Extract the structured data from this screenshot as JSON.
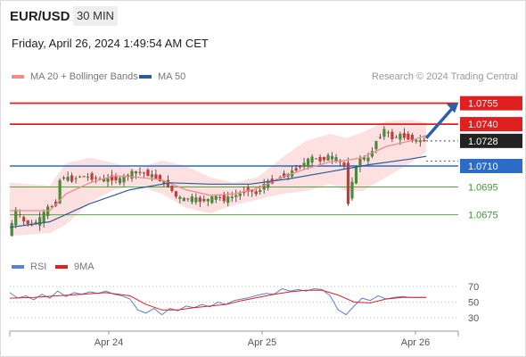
{
  "header": {
    "symbol": "EUR/USD",
    "timeframe": "30 MIN",
    "datetime": "Friday, April 26, 2024 1:49:54 AM CET"
  },
  "legend_main": [
    {
      "label": "MA 20 + Bollinger Bands",
      "color": "#f08c8c"
    },
    {
      "label": "MA 50",
      "color": "#2d5a9c"
    }
  ],
  "legend_osc": [
    {
      "label": "RSI",
      "color": "#5b7fd6"
    },
    {
      "label": "9MA",
      "color": "#e02020"
    }
  ],
  "watermark": "Research © 2024 Trading Central",
  "colors": {
    "resistance": "#e02020",
    "support": "#2d6cc4",
    "support_green": "#3a9b2c",
    "bull_candle": "#4c8a3a",
    "bear_candle": "#c53a3a",
    "band_fill": "#fde1e1",
    "arrow": "#2d5fa8"
  },
  "chart_data": [
    {
      "type": "line",
      "ylim": [
        1.0655,
        1.0765
      ],
      "xticks": [
        "Apr 24",
        "Apr 25",
        "Apr 26"
      ],
      "levels": [
        {
          "label": "1.0755",
          "value": 1.0755,
          "kind": "resistance"
        },
        {
          "label": "1.0740",
          "value": 1.074,
          "kind": "resistance"
        },
        {
          "label": "1.0728",
          "value": 1.0728,
          "kind": "last"
        },
        {
          "label": "1.0710",
          "value": 1.071,
          "kind": "support-blue"
        },
        {
          "label": "1.0695",
          "value": 1.0695,
          "kind": "support-green"
        },
        {
          "label": "1.0675",
          "value": 1.0675,
          "kind": "support-green"
        }
      ],
      "price_path": [
        [
          0,
          1.066
        ],
        [
          2,
          1.0678
        ],
        [
          4,
          1.067
        ],
        [
          6,
          1.0668
        ],
        [
          8,
          1.0672
        ],
        [
          10,
          1.068
        ],
        [
          12,
          1.0683
        ],
        [
          13,
          1.07
        ],
        [
          14,
          1.0702
        ],
        [
          16,
          1.07
        ],
        [
          18,
          1.0703
        ],
        [
          20,
          1.0702
        ],
        [
          22,
          1.0701
        ],
        [
          24,
          1.07
        ],
        [
          26,
          1.0701
        ],
        [
          28,
          1.07
        ],
        [
          30,
          1.0704
        ],
        [
          32,
          1.0706
        ],
        [
          34,
          1.0705
        ],
        [
          36,
          1.0703
        ],
        [
          38,
          1.07
        ],
        [
          40,
          1.0696
        ],
        [
          42,
          1.0688
        ],
        [
          44,
          1.0686
        ],
        [
          46,
          1.0687
        ],
        [
          48,
          1.0685
        ],
        [
          50,
          1.0686
        ],
        [
          52,
          1.0688
        ],
        [
          54,
          1.0686
        ],
        [
          56,
          1.0688
        ],
        [
          58,
          1.069
        ],
        [
          60,
          1.0693
        ],
        [
          62,
          1.069
        ],
        [
          64,
          1.0697
        ],
        [
          66,
          1.0699
        ],
        [
          68,
          1.0702
        ],
        [
          70,
          1.0704
        ],
        [
          72,
          1.0708
        ],
        [
          74,
          1.0712
        ],
        [
          76,
          1.0716
        ],
        [
          78,
          1.0714
        ],
        [
          80,
          1.0717
        ],
        [
          82,
          1.0715
        ],
        [
          84,
          1.071
        ],
        [
          85,
          1.0684
        ],
        [
          86,
          1.07
        ],
        [
          88,
          1.0716
        ],
        [
          90,
          1.0715
        ],
        [
          92,
          1.0728
        ],
        [
          94,
          1.0736
        ],
        [
          96,
          1.073
        ],
        [
          98,
          1.0732
        ],
        [
          100,
          1.073
        ],
        [
          102,
          1.0728
        ],
        [
          104,
          1.0728
        ]
      ],
      "ma20": [
        [
          0,
          1.0678
        ],
        [
          10,
          1.0678
        ],
        [
          14,
          1.069
        ],
        [
          20,
          1.0698
        ],
        [
          26,
          1.0703
        ],
        [
          32,
          1.0702
        ],
        [
          38,
          1.07
        ],
        [
          44,
          1.0693
        ],
        [
          50,
          1.0689
        ],
        [
          56,
          1.069
        ],
        [
          62,
          1.0694
        ],
        [
          68,
          1.0702
        ],
        [
          74,
          1.0708
        ],
        [
          80,
          1.0713
        ],
        [
          84,
          1.0714
        ],
        [
          88,
          1.0716
        ],
        [
          94,
          1.0724
        ],
        [
          100,
          1.0728
        ],
        [
          104,
          1.0732
        ]
      ],
      "bb_upper": [
        [
          0,
          1.0698
        ],
        [
          10,
          1.0696
        ],
        [
          14,
          1.0712
        ],
        [
          20,
          1.0716
        ],
        [
          26,
          1.0712
        ],
        [
          32,
          1.0708
        ],
        [
          38,
          1.0714
        ],
        [
          44,
          1.071
        ],
        [
          50,
          1.0702
        ],
        [
          56,
          1.0698
        ],
        [
          62,
          1.0702
        ],
        [
          68,
          1.0716
        ],
        [
          74,
          1.0728
        ],
        [
          80,
          1.0733
        ],
        [
          84,
          1.073
        ],
        [
          88,
          1.0734
        ],
        [
          94,
          1.0742
        ],
        [
          100,
          1.0743
        ],
        [
          104,
          1.0741
        ]
      ],
      "bb_lower": [
        [
          0,
          1.066
        ],
        [
          10,
          1.0662
        ],
        [
          14,
          1.0668
        ],
        [
          20,
          1.0684
        ],
        [
          26,
          1.0693
        ],
        [
          32,
          1.0696
        ],
        [
          38,
          1.069
        ],
        [
          44,
          1.068
        ],
        [
          50,
          1.0676
        ],
        [
          56,
          1.0682
        ],
        [
          62,
          1.0686
        ],
        [
          68,
          1.069
        ],
        [
          74,
          1.0692
        ],
        [
          80,
          1.0697
        ],
        [
          84,
          1.0692
        ],
        [
          88,
          1.0692
        ],
        [
          94,
          1.0702
        ],
        [
          100,
          1.0712
        ],
        [
          104,
          1.072
        ]
      ],
      "ma50": [
        [
          0,
          1.0666
        ],
        [
          10,
          1.067
        ],
        [
          20,
          1.0683
        ],
        [
          30,
          1.0693
        ],
        [
          40,
          1.0698
        ],
        [
          50,
          1.0697
        ],
        [
          60,
          1.0697
        ],
        [
          70,
          1.0701
        ],
        [
          80,
          1.0706
        ],
        [
          90,
          1.0711
        ],
        [
          100,
          1.0715
        ],
        [
          104,
          1.0717
        ]
      ],
      "forecast_arrow": {
        "from": [
          104,
          1.073
        ],
        "to": [
          112,
          1.0755
        ]
      }
    },
    {
      "type": "line",
      "ylim": [
        20,
        80
      ],
      "yticks": [
        "70",
        "50",
        "30"
      ],
      "rsi": [
        [
          0,
          62
        ],
        [
          2,
          55
        ],
        [
          4,
          58
        ],
        [
          6,
          53
        ],
        [
          8,
          60
        ],
        [
          10,
          55
        ],
        [
          12,
          64
        ],
        [
          14,
          57
        ],
        [
          16,
          62
        ],
        [
          18,
          60
        ],
        [
          20,
          63
        ],
        [
          22,
          61
        ],
        [
          24,
          64
        ],
        [
          26,
          60
        ],
        [
          28,
          58
        ],
        [
          30,
          54
        ],
        [
          32,
          40
        ],
        [
          34,
          36
        ],
        [
          36,
          42
        ],
        [
          38,
          34
        ],
        [
          40,
          42
        ],
        [
          42,
          39
        ],
        [
          44,
          45
        ],
        [
          46,
          43
        ],
        [
          48,
          47
        ],
        [
          50,
          44
        ],
        [
          52,
          50
        ],
        [
          54,
          47
        ],
        [
          56,
          52
        ],
        [
          58,
          54
        ],
        [
          60,
          56
        ],
        [
          62,
          59
        ],
        [
          64,
          61
        ],
        [
          66,
          60
        ],
        [
          68,
          67
        ],
        [
          70,
          64
        ],
        [
          72,
          66
        ],
        [
          74,
          64
        ],
        [
          76,
          67
        ],
        [
          78,
          66
        ],
        [
          80,
          58
        ],
        [
          82,
          40
        ],
        [
          84,
          34
        ],
        [
          86,
          45
        ],
        [
          88,
          55
        ],
        [
          90,
          52
        ],
        [
          92,
          58
        ],
        [
          94,
          54
        ],
        [
          96,
          56
        ],
        [
          98,
          57
        ],
        [
          100,
          56
        ],
        [
          104,
          56
        ]
      ],
      "rsi_ma9": [
        [
          0,
          55
        ],
        [
          6,
          56
        ],
        [
          12,
          58
        ],
        [
          18,
          60
        ],
        [
          24,
          62
        ],
        [
          30,
          58
        ],
        [
          34,
          47
        ],
        [
          38,
          40
        ],
        [
          42,
          40
        ],
        [
          46,
          43
        ],
        [
          50,
          45
        ],
        [
          54,
          47
        ],
        [
          58,
          52
        ],
        [
          62,
          56
        ],
        [
          66,
          60
        ],
        [
          70,
          63
        ],
        [
          74,
          65
        ],
        [
          78,
          65
        ],
        [
          82,
          59
        ],
        [
          86,
          50
        ],
        [
          90,
          49
        ],
        [
          94,
          54
        ],
        [
          98,
          56
        ],
        [
          104,
          56
        ]
      ]
    }
  ]
}
